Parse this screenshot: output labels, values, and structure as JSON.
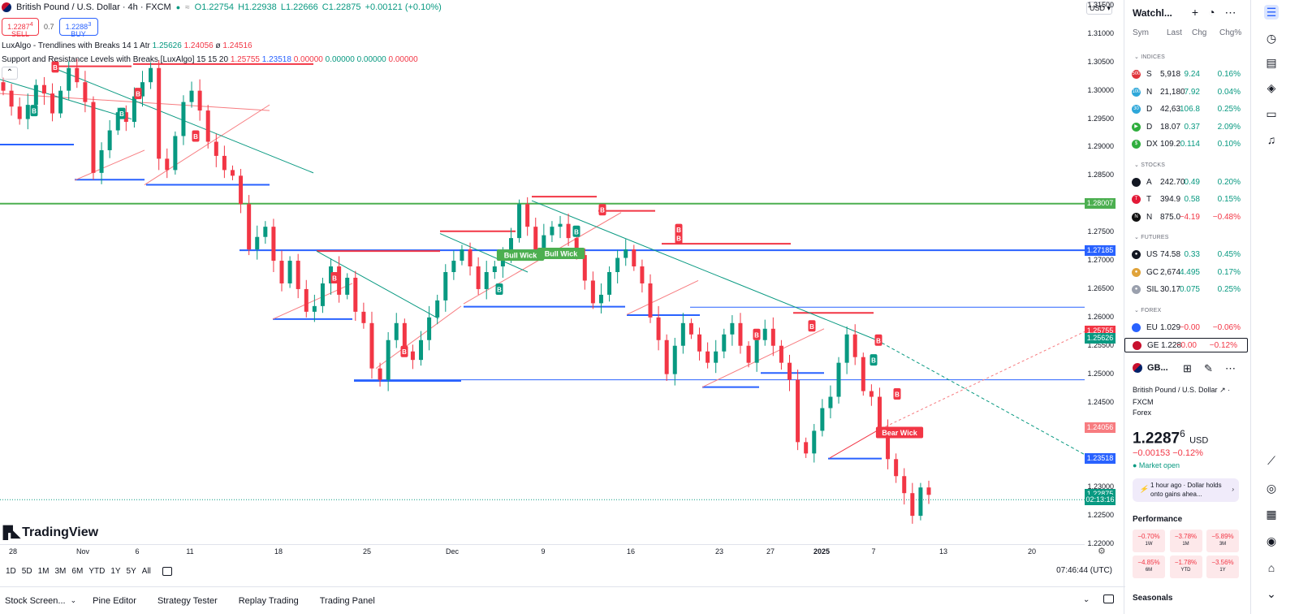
{
  "symbol": {
    "title": "British Pound / U.S. Dollar · 4h · FXCM",
    "ohlc": {
      "o": "O1.22754",
      "h": "H1.22938",
      "l": "L1.22666",
      "c": "C1.22875",
      "chg": "+0.00121 (+0.10%)"
    },
    "sell": {
      "price": "1.2287",
      "sup": "4",
      "label": "SELL"
    },
    "buy": {
      "price": "1.2288",
      "sup": "3",
      "label": "BUY"
    },
    "spread": "0.7"
  },
  "indicators": [
    {
      "name": "LuxAlgo - Trendlines with Breaks 14 1 Atr",
      "v1": "1.25626",
      "v2": "1.24056",
      "v3": "ø",
      "v4": "1.24516"
    },
    {
      "name": "Support and Resistance Levels with Breaks [LuxAlgo] 15 15 20",
      "v1": "1.25755",
      "v2": "1.23518",
      "v3": "0.00000",
      "v4": "0.00000",
      "v5": "0.00000",
      "v6": "0.00000"
    }
  ],
  "brand": "TradingView",
  "currency_btn": "USD",
  "price_axis": [
    "1.31500",
    "1.31000",
    "1.30500",
    "1.30000",
    "1.29500",
    "1.29000",
    "1.28500",
    "1.28000",
    "1.27500",
    "1.27000",
    "1.26500",
    "1.26000",
    "1.25500",
    "1.25000",
    "1.24500",
    "1.24000",
    "1.23500",
    "1.23000",
    "1.22500",
    "1.22000"
  ],
  "price_tags": [
    {
      "label": "1.28007",
      "color": "#4caf50",
      "price": 1.28007
    },
    {
      "label": "1.27185",
      "color": "#2962ff",
      "price": 1.27185
    },
    {
      "label": "1.25755",
      "color": "#f23645",
      "price": 1.25755
    },
    {
      "label": "1.25626",
      "color": "#089981",
      "price": 1.25626
    },
    {
      "label": "1.24056",
      "color": "#f77c80",
      "price": 1.24056
    },
    {
      "label": "1.23518",
      "color": "#2962ff",
      "price": 1.23518
    },
    {
      "label": "1.22875",
      "color": "#089981",
      "price": 1.22875
    },
    {
      "label": "02:13:16",
      "color": "#089981",
      "price": 1.22785
    }
  ],
  "time_axis": [
    {
      "t": "28",
      "x": 16
    },
    {
      "t": "Nov",
      "x": 102
    },
    {
      "t": "6",
      "x": 169
    },
    {
      "t": "11",
      "x": 234
    },
    {
      "t": "18",
      "x": 343
    },
    {
      "t": "25",
      "x": 452
    },
    {
      "t": "Dec",
      "x": 557
    },
    {
      "t": "9",
      "x": 669
    },
    {
      "t": "16",
      "x": 777
    },
    {
      "t": "23",
      "x": 886
    },
    {
      "t": "27",
      "x": 949
    },
    {
      "t": "2025",
      "x": 1012,
      "bold": true
    },
    {
      "t": "7",
      "x": 1076
    },
    {
      "t": "13",
      "x": 1162
    },
    {
      "t": "20",
      "x": 1271
    }
  ],
  "chart_labels": {
    "bull_wick": "Bull Wick",
    "bear_wick": "Bear Wick",
    "break_b": "B"
  },
  "ranges": [
    "1D",
    "5D",
    "1M",
    "3M",
    "6M",
    "YTD",
    "1Y",
    "5Y",
    "All"
  ],
  "clock": "07:46:44 (UTC)",
  "bottom_tabs": [
    "Stock Screen...",
    "Pine Editor",
    "Strategy Tester",
    "Replay Trading",
    "Trading Panel"
  ],
  "watchlist": {
    "title": "Watchl...",
    "cols": {
      "sym": "Sym",
      "last": "Last",
      "chg": "Chg",
      "chgp": "Chg%"
    },
    "sections": [
      {
        "name": "INDICES",
        "rows": [
          {
            "logo": "500",
            "logoColor": "#e0343b",
            "sym": "S",
            "last": "5,918",
            "chg": "9.24",
            "chgp": "0.16%",
            "up": true
          },
          {
            "logo": "100",
            "logoColor": "#2ea7d9",
            "sym": "N",
            "last": "21,180",
            "chg": "7.92",
            "chgp": "0.04%",
            "up": true
          },
          {
            "logo": "30",
            "logoColor": "#2ea7d9",
            "sym": "D",
            "last": "42,63",
            "chg": "106.8",
            "chgp": "0.25%",
            "up": true
          },
          {
            "logo": "▶",
            "logoColor": "#2fae3e",
            "sym": "D",
            "last": "18.07",
            "chg": "0.37",
            "chgp": "2.09%",
            "up": true
          },
          {
            "logo": "$",
            "logoColor": "#2fae3e",
            "sym": "DX",
            "last": "109.2",
            "chg": "0.114",
            "chgp": "0.10%",
            "up": true
          }
        ]
      },
      {
        "name": "STOCKS",
        "rows": [
          {
            "logo": "",
            "logoColor": "#131722",
            "sym": "A",
            "last": "242.70",
            "chg": "0.49",
            "chgp": "0.20%",
            "up": true
          },
          {
            "logo": "T",
            "logoColor": "#e31937",
            "sym": "T",
            "last": "394.9",
            "chg": "0.58",
            "chgp": "0.15%",
            "up": true
          },
          {
            "logo": "N",
            "logoColor": "#111111",
            "sym": "N",
            "last": "875.0",
            "chg": "−4.19",
            "chgp": "−0.48%",
            "up": false
          }
        ]
      },
      {
        "name": "FUTURES",
        "rows": [
          {
            "logo": "●",
            "logoColor": "#131722",
            "sym": "US",
            "last": "74.58",
            "chg": "0.33",
            "chgp": "0.45%",
            "up": true
          },
          {
            "logo": "●",
            "logoColor": "#e0a33a",
            "sym": "GC",
            "last": "2,674",
            "chg": "4.495",
            "chgp": "0.17%",
            "up": true
          },
          {
            "logo": "●",
            "logoColor": "#9aa0ad",
            "sym": "SIL",
            "last": "30.17",
            "chg": "0.075",
            "chgp": "0.25%",
            "up": true
          }
        ]
      },
      {
        "name": "FOREX",
        "rows": [
          {
            "logo": "",
            "logoColor": "#2962ff",
            "sym": "EU",
            "last": "1.029",
            "chg": "−0.00",
            "chgp": "−0.06%",
            "up": false
          },
          {
            "logo": "",
            "logoColor": "#c8102e",
            "sym": "GE",
            "last": "1.228",
            "chg": "−0.00",
            "chgp": "−0.12%",
            "up": false,
            "selected": true
          }
        ]
      }
    ]
  },
  "details": {
    "short": "GB...",
    "name": "British Pound / U.S. Dollar",
    "exchange": "FXCM",
    "category": "Forex",
    "price": "1.2287",
    "price_sup": "6",
    "currency": "USD",
    "change": "−0.00153  −0.12%",
    "market": "● Market open",
    "news": "1 hour ago · Dollar holds onto gains ahea...",
    "perf_title": "Performance",
    "perf": [
      {
        "v": "−0.70%",
        "l": "1W"
      },
      {
        "v": "−3.78%",
        "l": "1M"
      },
      {
        "v": "−5.89%",
        "l": "3M"
      },
      {
        "v": "−4.85%",
        "l": "6M"
      },
      {
        "v": "−1.78%",
        "l": "YTD"
      },
      {
        "v": "−3.56%",
        "l": "1Y"
      }
    ],
    "seasonals": "Seasonals"
  },
  "chart_data": {
    "type": "candlestick",
    "timeframe": "4h",
    "ylim": [
      1.22,
      1.316
    ],
    "closes": [
      1.3,
      1.2972,
      1.295,
      1.2975,
      1.301,
      1.2995,
      1.296,
      1.3,
      1.304,
      1.3015,
      1.298,
      1.2855,
      1.2895,
      1.293,
      1.2962,
      1.2945,
      1.299,
      1.3015,
      1.304,
      1.288,
      1.286,
      1.292,
      1.298,
      1.3,
      1.2965,
      1.291,
      1.2885,
      1.286,
      1.285,
      1.28,
      1.272,
      1.2742,
      1.276,
      1.27,
      1.266,
      1.27,
      1.265,
      1.261,
      1.262,
      1.266,
      1.269,
      1.264,
      1.267,
      1.261,
      1.259,
      1.251,
      1.249,
      1.256,
      1.259,
      1.254,
      1.2525,
      1.256,
      1.26,
      1.263,
      1.268,
      1.27,
      1.272,
      1.269,
      1.265,
      1.268,
      1.269,
      1.271,
      1.274,
      1.28,
      1.276,
      1.272,
      1.2745,
      1.276,
      1.2765,
      1.274,
      1.271,
      1.2665,
      1.2625,
      1.264,
      1.268,
      1.2705,
      1.272,
      1.269,
      1.266,
      1.26,
      1.256,
      1.25,
      1.255,
      1.259,
      1.257,
      1.254,
      1.252,
      1.254,
      1.257,
      1.259,
      1.255,
      1.252,
      1.256,
      1.258,
      1.255,
      1.252,
      1.249,
      1.238,
      1.236,
      1.24,
      1.244,
      1.246,
      1.252,
      1.257,
      1.253,
      1.247,
      1.246,
      1.24,
      1.235,
      1.232,
      1.229,
      1.225,
      1.23,
      1.2287
    ]
  }
}
